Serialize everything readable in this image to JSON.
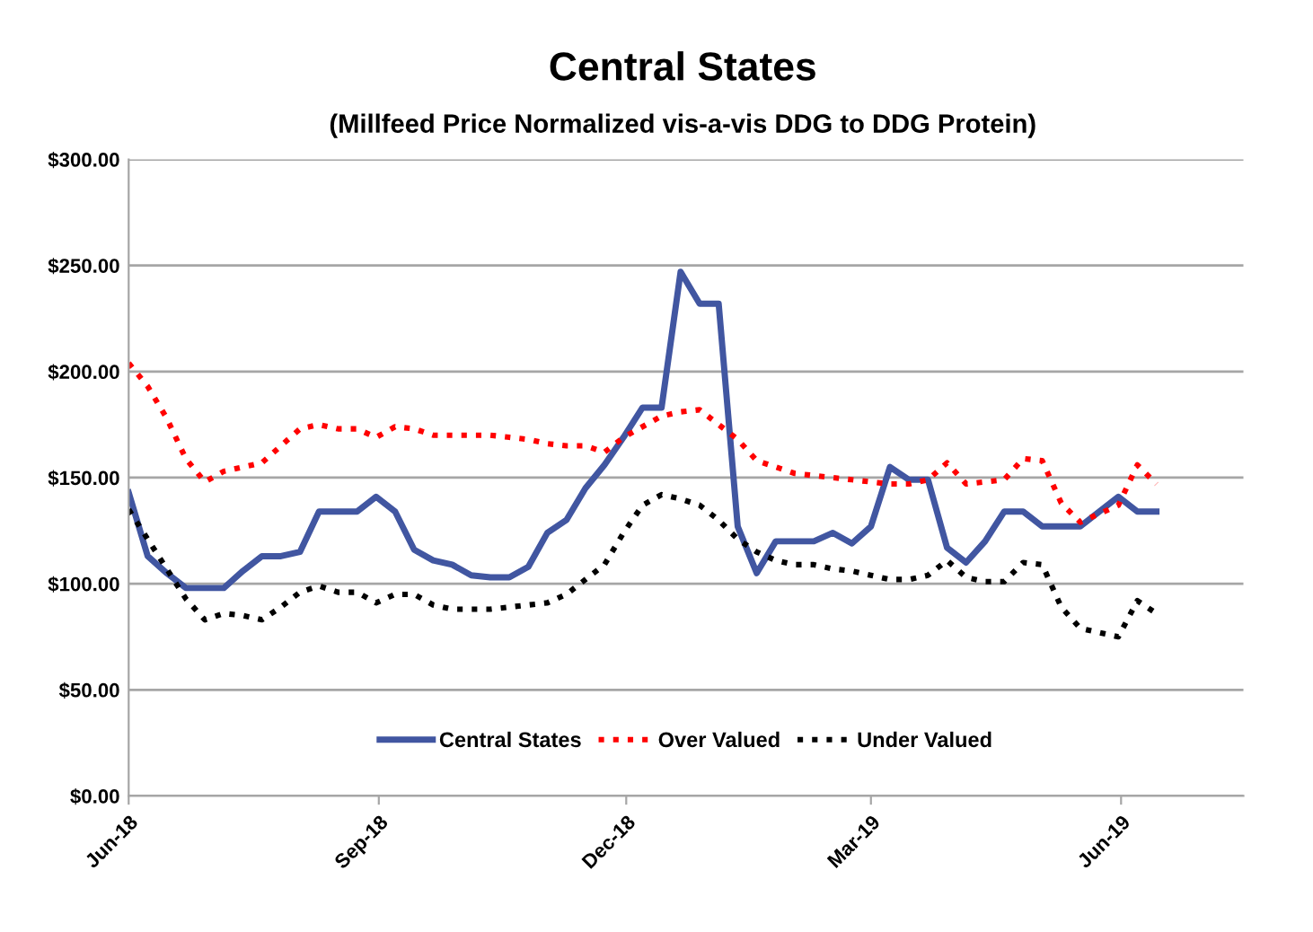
{
  "chart_data": {
    "type": "line",
    "title": "Central States",
    "subtitle": "(Millfeed Price Normalized vis-a-vis DDG to DDG Protein)",
    "x": [
      "2018-06-01",
      "2018-06-08",
      "2018-06-15",
      "2018-06-22",
      "2018-06-29",
      "2018-07-06",
      "2018-07-13",
      "2018-07-20",
      "2018-07-27",
      "2018-08-03",
      "2018-08-10",
      "2018-08-17",
      "2018-08-24",
      "2018-08-31",
      "2018-09-07",
      "2018-09-14",
      "2018-09-21",
      "2018-09-28",
      "2018-10-05",
      "2018-10-12",
      "2018-10-19",
      "2018-10-26",
      "2018-11-02",
      "2018-11-09",
      "2018-11-16",
      "2018-11-23",
      "2018-11-30",
      "2018-12-07",
      "2018-12-14",
      "2018-12-21",
      "2018-12-28",
      "2019-01-04",
      "2019-01-11",
      "2019-01-18",
      "2019-01-25",
      "2019-02-01",
      "2019-02-08",
      "2019-02-15",
      "2019-02-22",
      "2019-03-01",
      "2019-03-08",
      "2019-03-15",
      "2019-03-22",
      "2019-03-29",
      "2019-04-05",
      "2019-04-12",
      "2019-04-19",
      "2019-04-26",
      "2019-05-03",
      "2019-05-10",
      "2019-05-17",
      "2019-05-24",
      "2019-05-31",
      "2019-06-07",
      "2019-06-14"
    ],
    "series": [
      {
        "name": "Central States",
        "color": "#4156a1",
        "line_style": "solid",
        "values": [
          143,
          113,
          105,
          98,
          98,
          98,
          106,
          113,
          113,
          115,
          134,
          134,
          134,
          141,
          134,
          116,
          111,
          109,
          104,
          103,
          103,
          108,
          124,
          130,
          145,
          156,
          169,
          183,
          183,
          247,
          232,
          232,
          127,
          105,
          120,
          120,
          120,
          124,
          119,
          127,
          155,
          149,
          149,
          117,
          110,
          120,
          134,
          134,
          127,
          127,
          127,
          134,
          141,
          134,
          134
        ]
      },
      {
        "name": "Over Valued",
        "color": "#ff0000",
        "line_style": "dotted",
        "values": [
          204,
          193,
          178,
          159,
          148,
          153,
          155,
          157,
          165,
          173,
          175,
          173,
          173,
          169,
          174,
          173,
          170,
          170,
          170,
          170,
          169,
          168,
          166,
          165,
          165,
          162,
          169,
          174,
          179,
          181,
          182,
          175,
          168,
          158,
          155,
          152,
          151,
          150,
          149,
          148,
          147,
          147,
          149,
          157,
          147,
          148,
          149,
          159,
          158,
          138,
          129,
          133,
          137,
          156,
          147
        ]
      },
      {
        "name": "Under Valued",
        "color": "#000000",
        "line_style": "dotted",
        "values": [
          135,
          121,
          107,
          93,
          83,
          86,
          85,
          83,
          89,
          96,
          99,
          96,
          96,
          91,
          95,
          95,
          90,
          88,
          88,
          88,
          89,
          90,
          91,
          95,
          102,
          109,
          124,
          137,
          142,
          140,
          137,
          130,
          121,
          115,
          111,
          109,
          109,
          107,
          106,
          104,
          102,
          102,
          104,
          111,
          103,
          101,
          101,
          110,
          109,
          89,
          79,
          77,
          75,
          92,
          86
        ]
      }
    ],
    "xlim": [
      "2018-06-01",
      "2019-07-16"
    ],
    "xticks": [
      {
        "value": "2018-06-01",
        "label": "Jun-18"
      },
      {
        "value": "2018-09-01",
        "label": "Sep-18"
      },
      {
        "value": "2018-12-01",
        "label": "Dec-18"
      },
      {
        "value": "2019-03-01",
        "label": "Mar-19"
      },
      {
        "value": "2019-06-01",
        "label": "Jun-19"
      }
    ],
    "ylim": [
      0,
      300
    ],
    "yticks": [
      {
        "value": 0,
        "label": "$0.00"
      },
      {
        "value": 50,
        "label": "$50.00"
      },
      {
        "value": 100,
        "label": "$100.00"
      },
      {
        "value": 150,
        "label": "$150.00"
      },
      {
        "value": 200,
        "label": "$200.00"
      },
      {
        "value": 250,
        "label": "$250.00"
      },
      {
        "value": 300,
        "label": "$300.00"
      }
    ],
    "grid": "y",
    "legend": "bottom",
    "marker": "none"
  }
}
